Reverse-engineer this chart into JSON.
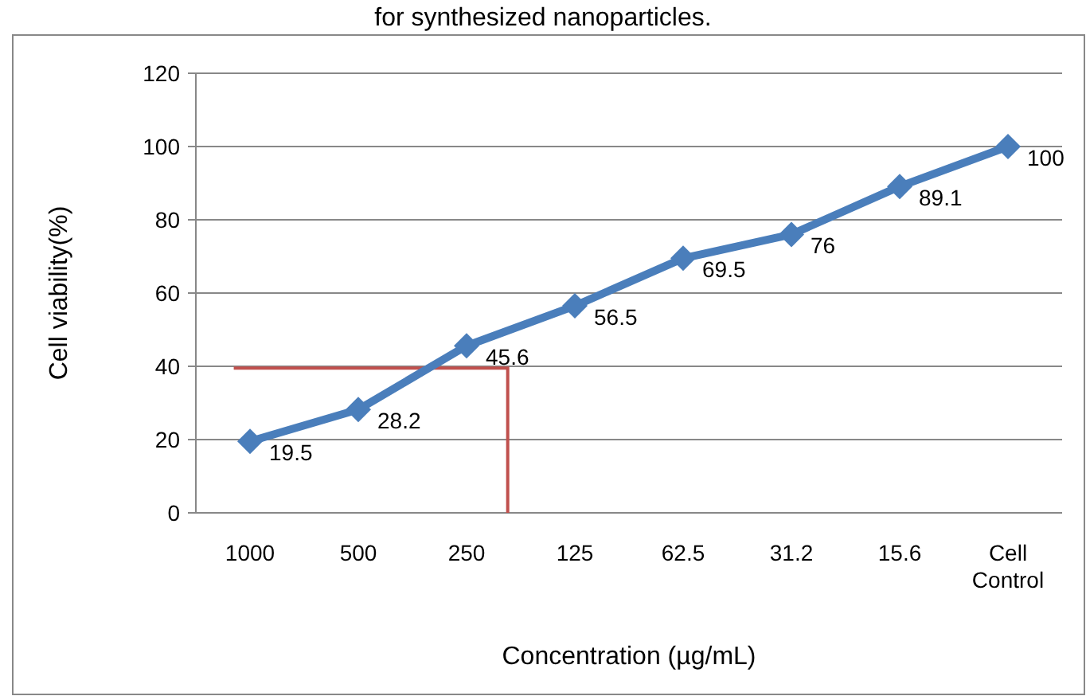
{
  "chart_data": {
    "type": "line",
    "title": "for synthesized nanoparticles.",
    "xlabel": "Concentration  (µg/mL)",
    "ylabel": "Cell viability(%)",
    "categories": [
      "1000",
      "500",
      "250",
      "125",
      "62.5",
      "31.2",
      "15.6",
      "Cell Control"
    ],
    "series": [
      {
        "color": "#4a7ebb",
        "values": [
          19.5,
          28.2,
          45.6,
          56.5,
          69.5,
          76,
          89.1,
          100
        ]
      }
    ],
    "ylim": [
      0,
      120
    ],
    "yticks": [
      0,
      20,
      40,
      60,
      80,
      100,
      120
    ],
    "grid": "y",
    "marker": "diamond",
    "line_style": "solid",
    "data_labels": true
  }
}
